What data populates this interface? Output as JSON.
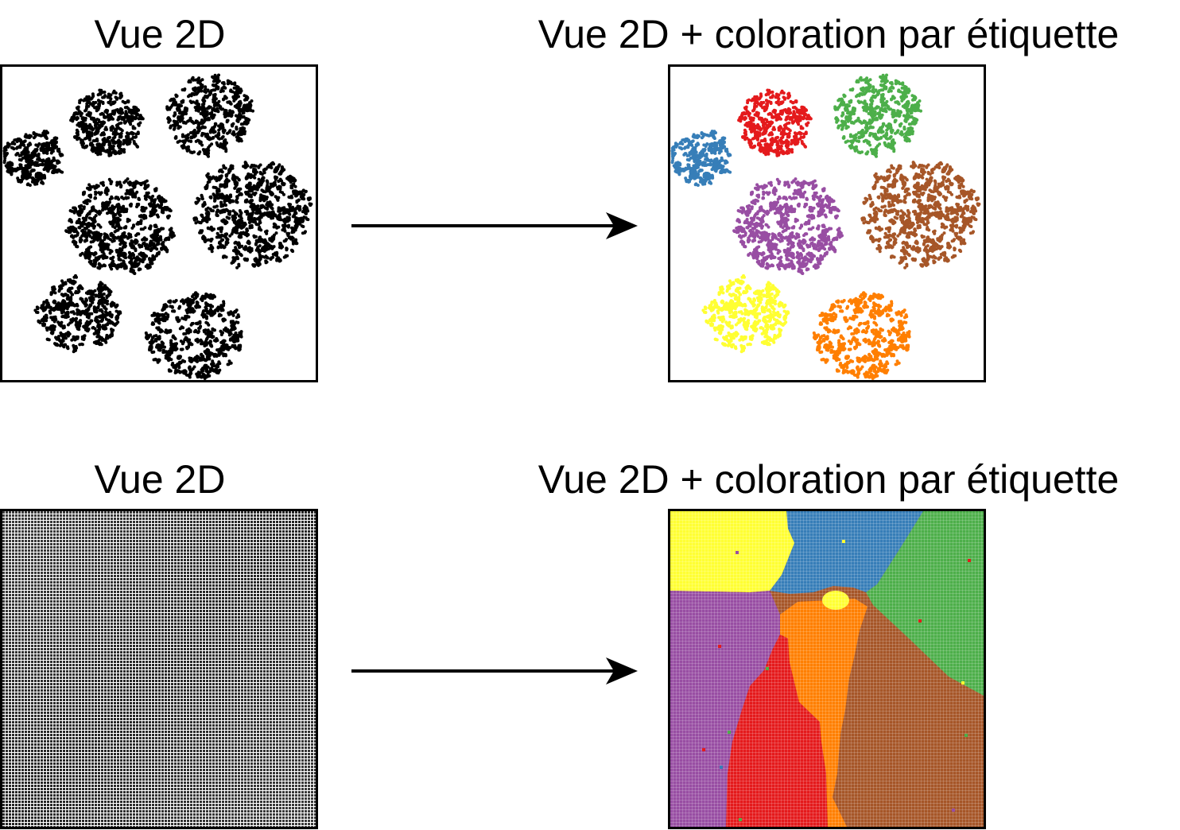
{
  "figure": {
    "rows": [
      {
        "left_title": "Vue 2D",
        "right_title": "Vue 2D + coloration par étiquette",
        "left_panel": "scatter-clusters-uncolored",
        "right_panel": "scatter-clusters-colored"
      },
      {
        "left_title": "Vue 2D",
        "right_title": "Vue 2D + coloration par étiquette",
        "left_panel": "dense-grid-uncolored",
        "right_panel": "dense-grid-colored-regions"
      }
    ]
  },
  "colors": {
    "red": "#e41a1c",
    "blue": "#377eb8",
    "green": "#4daf4a",
    "purple": "#984ea3",
    "orange": "#ff7f00",
    "yellow": "#ffff33",
    "brown": "#a65628",
    "black": "#000000"
  },
  "clusters": [
    {
      "label": "red",
      "color": "#e41a1c"
    },
    {
      "label": "green",
      "color": "#4daf4a"
    },
    {
      "label": "blue",
      "color": "#377eb8"
    },
    {
      "label": "purple",
      "color": "#984ea3"
    },
    {
      "label": "brown",
      "color": "#a65628"
    },
    {
      "label": "yellow",
      "color": "#ffff33"
    },
    {
      "label": "orange",
      "color": "#ff7f00"
    }
  ]
}
